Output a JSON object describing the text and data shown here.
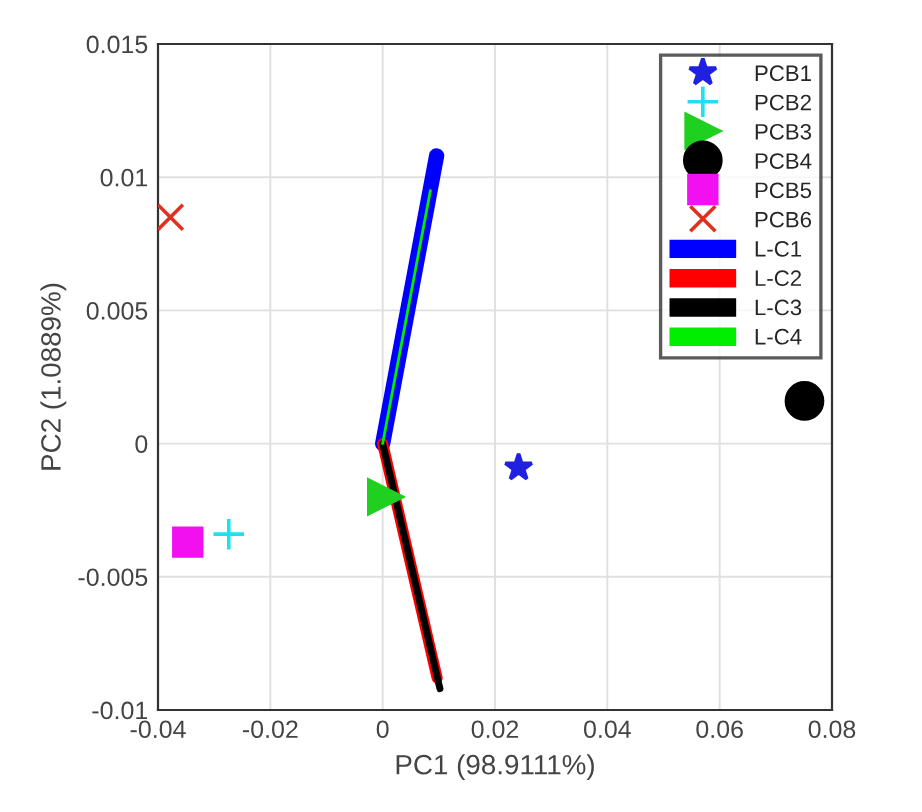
{
  "chart_data": {
    "type": "scatter",
    "xlabel": "PC1 (98.9111%)",
    "ylabel": "PC2 (1.0889%)",
    "xlim": [
      -0.04,
      0.08
    ],
    "xticks": [
      -0.04,
      -0.02,
      0,
      0.02,
      0.04,
      0.06,
      0.08
    ],
    "ylim": [
      -0.01,
      0.015
    ],
    "yticks": [
      -0.01,
      -0.005,
      0,
      0.005,
      0.01,
      0.015
    ],
    "grid": true,
    "legend": "top right",
    "series": [
      {
        "name": "PCB1",
        "marker": "star",
        "color": "#2020e0",
        "x": [
          0.0242
        ],
        "values": [
          -0.0009
        ]
      },
      {
        "name": "PCB2",
        "marker": "plus",
        "color": "#20e0f0",
        "x": [
          -0.0274
        ],
        "values": [
          -0.0034
        ]
      },
      {
        "name": "PCB3",
        "marker": "triangle",
        "color": "#20d020",
        "x": [
          0.0005
        ],
        "values": [
          -0.002
        ]
      },
      {
        "name": "PCB4",
        "marker": "circle",
        "color": "#000000",
        "x": [
          0.0751
        ],
        "values": [
          0.0016
        ]
      },
      {
        "name": "PCB5",
        "marker": "square",
        "color": "#f010f0",
        "x": [
          -0.0347
        ],
        "values": [
          -0.0037
        ]
      },
      {
        "name": "PCB6",
        "marker": "cross",
        "color": "#e03020",
        "x": [
          -0.0378
        ],
        "values": [
          0.0085
        ]
      },
      {
        "name": "L-C1",
        "type": "line",
        "color": "#0000ff",
        "x": [
          0,
          0.0096
        ],
        "values": [
          0,
          0.0108
        ]
      },
      {
        "name": "L-C2",
        "type": "line",
        "color": "#ff0000",
        "x": [
          0,
          0.0097
        ],
        "values": [
          0,
          -0.0088
        ]
      },
      {
        "name": "L-C3",
        "type": "line",
        "color": "#000000",
        "x": [
          0,
          0.0102
        ],
        "values": [
          0,
          -0.0092
        ]
      },
      {
        "name": "L-C4",
        "type": "line",
        "color": "#00ee00",
        "x": [
          0,
          0.0085
        ],
        "values": [
          0,
          0.0095
        ]
      }
    ]
  }
}
